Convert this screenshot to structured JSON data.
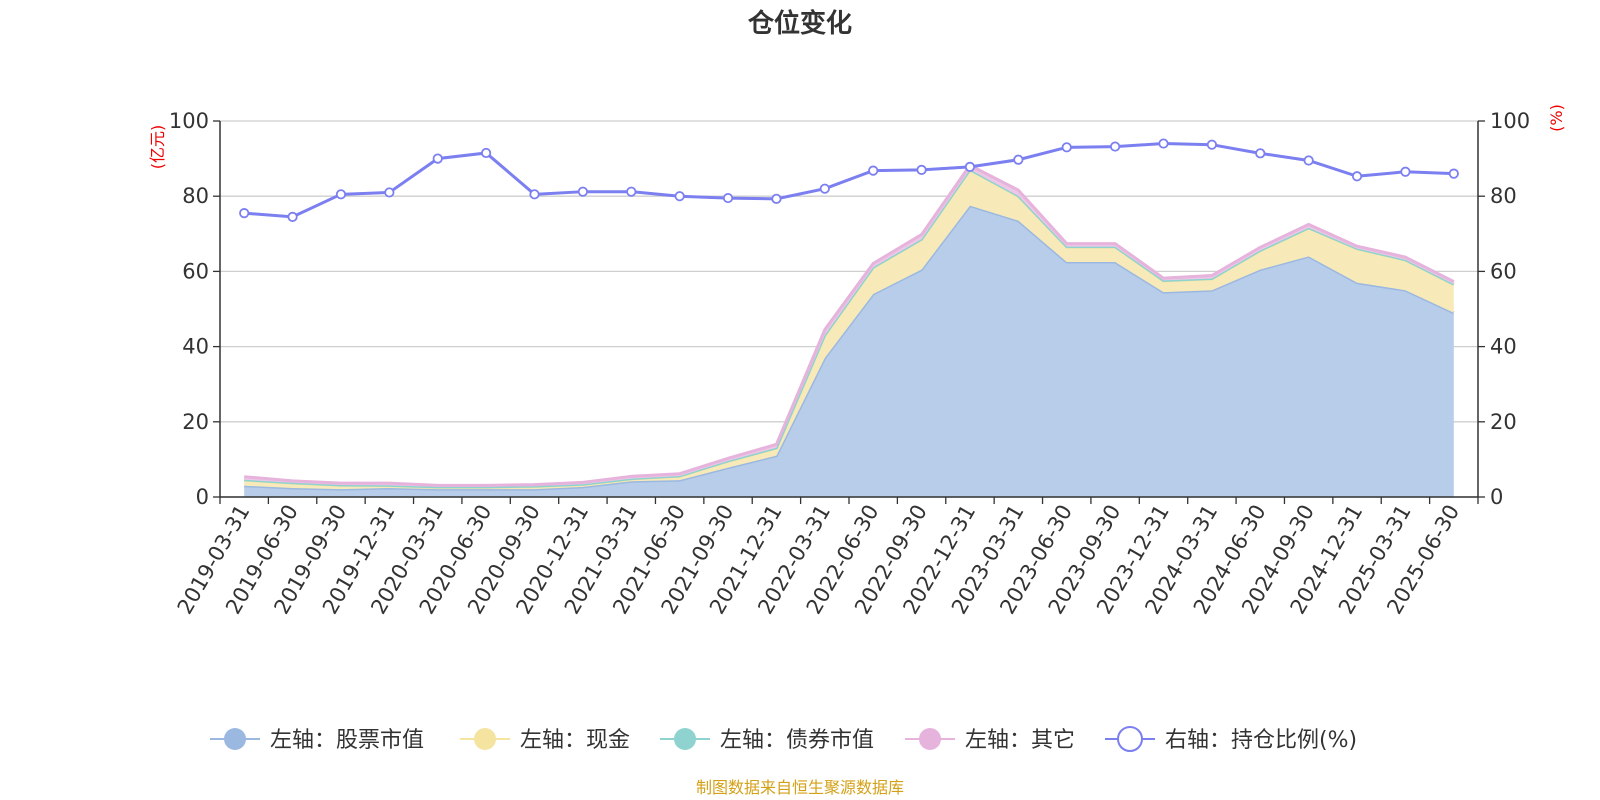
{
  "chart_data": {
    "type": "area",
    "title": "仓位变化",
    "left_axis_unit": "(亿元)",
    "right_axis_unit": "(%)",
    "x": [
      "2019-03-31",
      "2019-06-30",
      "2019-09-30",
      "2019-12-31",
      "2020-03-31",
      "2020-06-30",
      "2020-09-30",
      "2020-12-31",
      "2021-03-31",
      "2021-06-30",
      "2021-09-30",
      "2021-12-31",
      "2022-03-31",
      "2022-06-30",
      "2022-09-30",
      "2022-12-31",
      "2023-03-31",
      "2023-06-30",
      "2023-09-30",
      "2023-12-31",
      "2024-03-31",
      "2024-06-30",
      "2024-09-30",
      "2024-12-31",
      "2025-03-31",
      "2025-06-30"
    ],
    "y_left_ticks": [
      "0",
      "20",
      "40",
      "60",
      "80",
      "100"
    ],
    "y_right_ticks": [
      "0",
      "20",
      "40",
      "60",
      "80",
      "100"
    ],
    "ylim_left": [
      0,
      100
    ],
    "ylim_right": [
      0,
      100
    ],
    "grid": true,
    "legend_position": "bottom",
    "series": [
      {
        "name": "左轴：股票市值",
        "axis": "left",
        "stacked": true,
        "color": "#9bb8e0",
        "fill": "#b8cdea",
        "values": [
          3.0,
          2.4,
          2.1,
          2.4,
          2.1,
          2.1,
          2.1,
          2.7,
          4.2,
          4.5,
          7.8,
          11.0,
          37.0,
          54.0,
          60.5,
          77.5,
          73.5,
          62.5,
          62.5,
          54.5,
          55.0,
          60.5,
          64.0,
          57.0,
          55.0,
          49.0
        ]
      },
      {
        "name": "左轴：现金",
        "axis": "left",
        "stacked": true,
        "color": "#f5e3a0",
        "fill": "#f8eab8",
        "values": [
          1.5,
          1.3,
          1.0,
          0.6,
          0.5,
          0.5,
          0.7,
          0.6,
          0.6,
          1.0,
          1.7,
          2.0,
          6.0,
          7.0,
          8.0,
          9.5,
          6.5,
          4.0,
          4.0,
          3.0,
          3.0,
          5.0,
          7.5,
          9.0,
          8.0,
          7.5
        ]
      },
      {
        "name": "左轴：债券市值",
        "axis": "left",
        "stacked": true,
        "color": "#8fd3d0",
        "fill": "#a8dedb",
        "values": [
          0.1,
          0.1,
          0.1,
          0.1,
          0.1,
          0.1,
          0.1,
          0.1,
          0.1,
          0.1,
          0.1,
          0.1,
          0.1,
          0.1,
          0.1,
          0.1,
          0.1,
          0.1,
          0.1,
          0.1,
          0.1,
          0.1,
          0.1,
          0.1,
          0.1,
          0.1
        ]
      },
      {
        "name": "左轴：其它",
        "axis": "left",
        "stacked": true,
        "color": "#e6b3dc",
        "fill": "#efc7e6",
        "values": [
          0.8,
          0.5,
          0.5,
          0.6,
          0.4,
          0.4,
          0.4,
          0.5,
          0.6,
          0.6,
          0.7,
          0.9,
          1.4,
          1.0,
          1.2,
          1.1,
          1.5,
          0.8,
          0.8,
          0.6,
          0.8,
          0.8,
          0.9,
          0.6,
          0.7,
          0.7
        ]
      },
      {
        "name": "右轴：持仓比例(%)",
        "axis": "right",
        "type": "line",
        "color": "#7b7ff0",
        "values": [
          75.5,
          74.5,
          80.5,
          81.0,
          90.0,
          91.5,
          80.5,
          81.2,
          81.2,
          80.0,
          79.5,
          79.3,
          82.0,
          86.8,
          87.0,
          87.8,
          89.7,
          93.0,
          93.2,
          94.0,
          93.7,
          91.4,
          89.5,
          85.3,
          86.5,
          86.0
        ]
      }
    ]
  },
  "source_text": "制图数据来自恒生聚源数据库"
}
